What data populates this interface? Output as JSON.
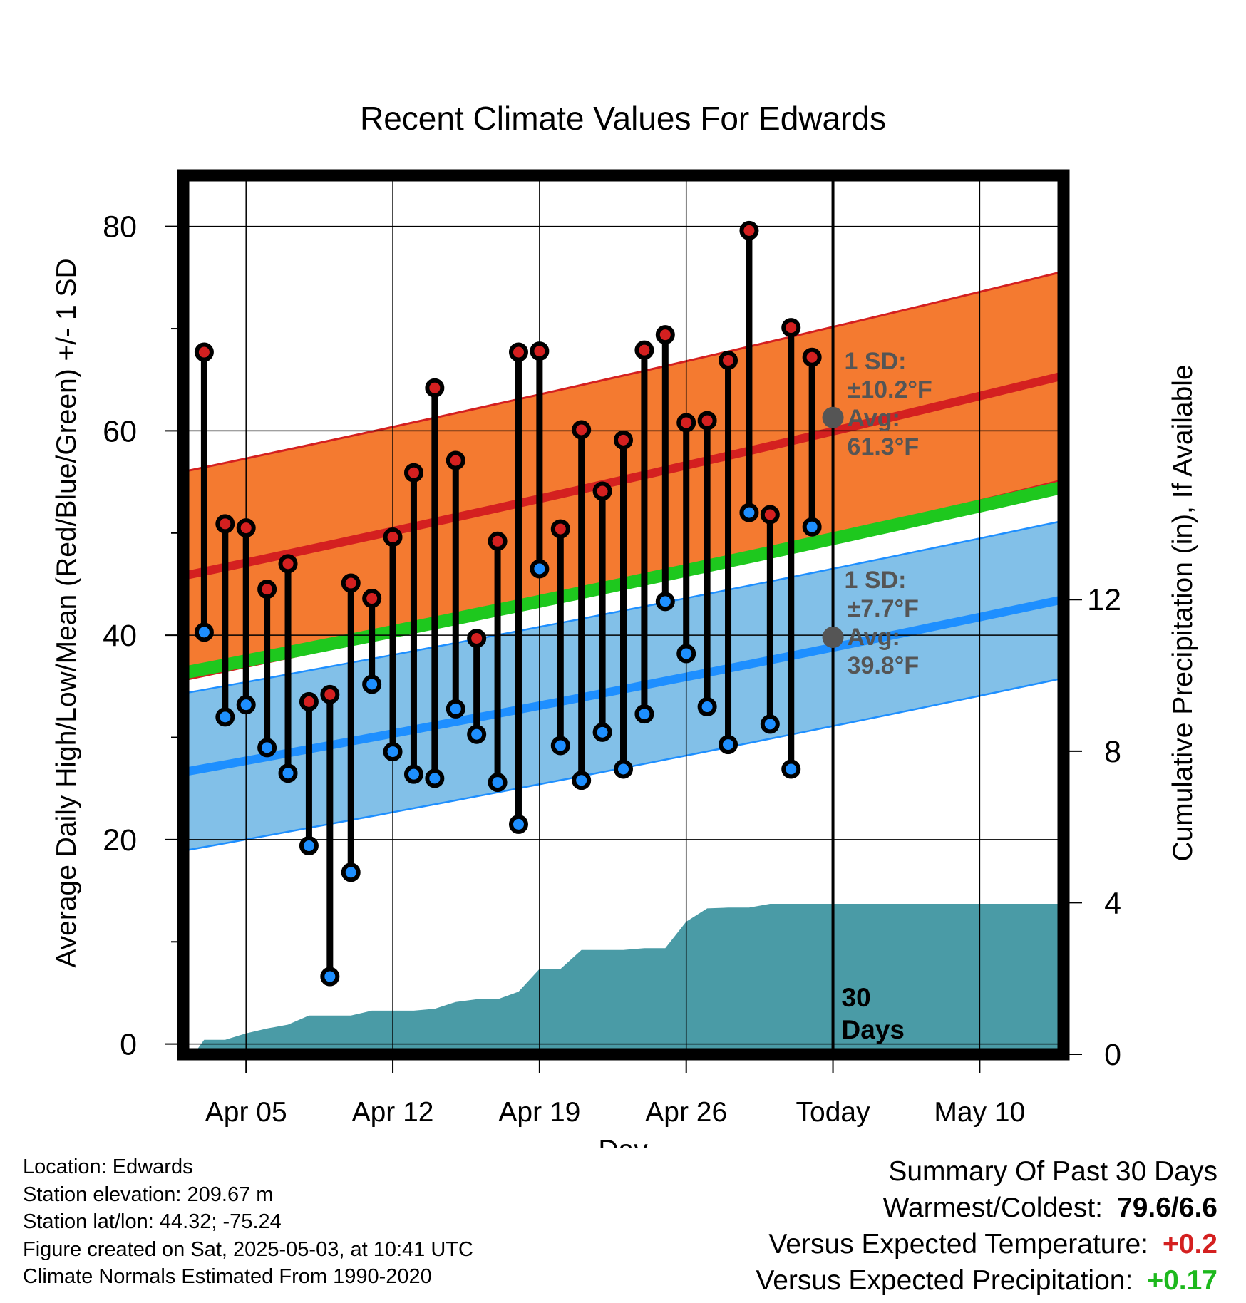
{
  "chart_data": {
    "type": "line",
    "title": "Recent Climate Values For Edwards",
    "xlabel": "Day",
    "ylabel": "Average Daily High/Low/Mean (Red/Blue/Green) +/- 1 SD",
    "y2label": "Cumulative Precipitation (in), If Available",
    "xlim": [
      "2025-04-02",
      "2025-05-14"
    ],
    "ylim": [
      -1,
      85
    ],
    "y2lim": [
      0,
      23.2
    ],
    "x_ticks": [
      {
        "date": "2025-04-05",
        "label": "Apr 05"
      },
      {
        "date": "2025-04-12",
        "label": "Apr 12"
      },
      {
        "date": "2025-04-19",
        "label": "Apr 19"
      },
      {
        "date": "2025-04-26",
        "label": "Apr 26"
      },
      {
        "date": "2025-05-03",
        "label": "Today"
      },
      {
        "date": "2025-05-10",
        "label": "May 10"
      }
    ],
    "y_ticks": [
      0,
      20,
      40,
      60,
      80
    ],
    "y2_ticks": [
      0,
      4,
      8,
      12
    ],
    "grid": true,
    "today": "2025-05-03",
    "today_label": "30\nDays",
    "colors": {
      "high": "#d42020",
      "low": "#1e8fff",
      "mean": "#1ec81e",
      "high_band": "#f47a30",
      "low_band": "#82c0e8",
      "precip": "#4a9ba6",
      "annotation": "#555555"
    },
    "normals": {
      "x": [
        "2025-04-02",
        "2025-05-14"
      ],
      "high_avg": [
        45.8,
        65.4
      ],
      "high_sd": 10.2,
      "low_avg": [
        26.6,
        43.5
      ],
      "low_sd": 7.7,
      "mean_avg": [
        36.3,
        54.5
      ]
    },
    "annotations": {
      "high": {
        "sd_label": "1 SD:",
        "sd_value": "±10.2°F",
        "avg_label": "Avg:",
        "avg_value": "61.3°F",
        "value": 61.3
      },
      "low": {
        "sd_label": "1 SD:",
        "sd_value": "±7.7°F",
        "avg_label": "Avg:",
        "avg_value": "39.8°F",
        "value": 39.8
      }
    },
    "daily": {
      "dates": [
        "2025-04-03",
        "2025-04-04",
        "2025-04-05",
        "2025-04-06",
        "2025-04-07",
        "2025-04-08",
        "2025-04-09",
        "2025-04-10",
        "2025-04-11",
        "2025-04-12",
        "2025-04-13",
        "2025-04-14",
        "2025-04-15",
        "2025-04-16",
        "2025-04-17",
        "2025-04-18",
        "2025-04-19",
        "2025-04-20",
        "2025-04-21",
        "2025-04-22",
        "2025-04-23",
        "2025-04-24",
        "2025-04-25",
        "2025-04-26",
        "2025-04-27",
        "2025-04-28",
        "2025-04-29",
        "2025-04-30",
        "2025-05-01",
        "2025-05-02"
      ],
      "high": [
        67.7,
        50.9,
        50.5,
        44.5,
        47.0,
        33.5,
        34.2,
        45.1,
        43.6,
        49.6,
        55.9,
        64.2,
        57.1,
        39.7,
        49.2,
        67.7,
        67.8,
        50.4,
        60.1,
        54.1,
        59.1,
        67.9,
        69.4,
        60.8,
        61.0,
        66.9,
        79.6,
        51.8,
        70.1,
        67.2
      ],
      "low": [
        40.3,
        32.0,
        33.2,
        29.0,
        26.5,
        19.4,
        6.6,
        16.8,
        35.2,
        28.6,
        26.4,
        26.0,
        32.8,
        30.3,
        25.6,
        21.5,
        46.5,
        29.2,
        25.8,
        30.5,
        26.9,
        32.3,
        43.3,
        38.2,
        33.0,
        29.3,
        52.0,
        31.3,
        26.9,
        50.6
      ]
    },
    "precipitation": {
      "x": [
        "2025-04-02",
        "2025-04-02.5",
        "2025-04-03",
        "2025-04-04",
        "2025-04-05",
        "2025-04-06",
        "2025-04-07",
        "2025-04-08",
        "2025-04-09",
        "2025-04-10",
        "2025-04-11",
        "2025-04-12",
        "2025-04-13",
        "2025-04-14",
        "2025-04-15",
        "2025-04-16",
        "2025-04-17",
        "2025-04-18",
        "2025-04-19",
        "2025-04-20",
        "2025-04-21",
        "2025-04-22",
        "2025-04-23",
        "2025-04-24",
        "2025-04-25",
        "2025-04-26",
        "2025-04-27",
        "2025-04-28",
        "2025-04-29",
        "2025-04-30",
        "2025-05-01",
        "2025-05-02",
        "2025-05-14"
      ],
      "y": [
        0.0,
        0.0,
        0.38,
        0.38,
        0.55,
        0.68,
        0.78,
        1.02,
        1.02,
        1.02,
        1.15,
        1.15,
        1.15,
        1.2,
        1.38,
        1.45,
        1.45,
        1.65,
        2.25,
        2.25,
        2.75,
        2.75,
        2.75,
        2.8,
        2.8,
        3.5,
        3.85,
        3.87,
        3.87,
        3.97,
        3.97,
        3.97,
        3.97
      ]
    }
  },
  "footer": {
    "location": "Location: Edwards",
    "elevation": "Station elevation: 209.67 m",
    "latlon": "Station lat/lon: 44.32; -75.24",
    "created": "Figure created on Sat, 2025-05-03, at 10:41 UTC",
    "normals": "Climate Normals Estimated From 1990-2020"
  },
  "summary": {
    "title": "Summary Of Past 30 Days",
    "warmest_label": "Warmest/Coldest:",
    "warmest_value": "79.6/6.6",
    "temp_label": "Versus Expected Temperature:",
    "temp_value": "+0.2",
    "precip_label": "Versus Expected Precipitation:",
    "precip_value": "+0.17"
  }
}
